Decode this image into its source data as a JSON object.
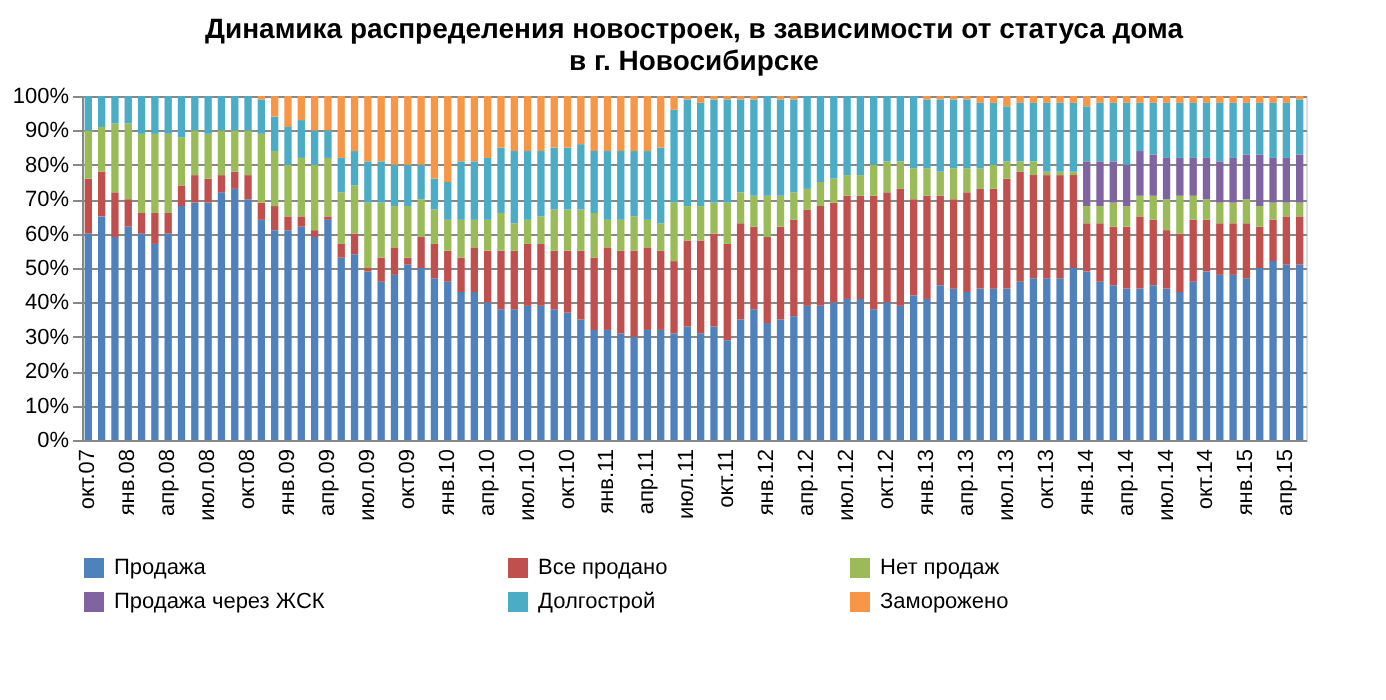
{
  "chart_data": {
    "type": "bar",
    "stacked": true,
    "title": "Динамика распределения новостроек, в зависимости от статуса дома\nв г. Новосибирске",
    "categories": [
      "окт.07",
      null,
      null,
      "янв.08",
      null,
      null,
      "апр.08",
      null,
      null,
      "июл.08",
      null,
      null,
      "окт.08",
      null,
      null,
      "янв.09",
      null,
      null,
      "апр.09",
      null,
      null,
      "июл.09",
      null,
      null,
      "окт.09",
      null,
      null,
      "янв.10",
      null,
      null,
      "апр.10",
      null,
      null,
      "июл.10",
      null,
      null,
      "окт.10",
      null,
      null,
      "янв.11",
      null,
      null,
      "апр.11",
      null,
      null,
      "июл.11",
      null,
      null,
      "окт.11",
      null,
      null,
      "янв.12",
      null,
      null,
      "апр.12",
      null,
      null,
      "июл.12",
      null,
      null,
      "окт.12",
      null,
      null,
      "янв.13",
      null,
      null,
      "апр.13",
      null,
      null,
      "июл.13",
      null,
      null,
      "окт.13",
      null,
      null,
      "янв.14",
      null,
      null,
      "апр.14",
      null,
      null,
      "июл.14",
      null,
      null,
      "окт.14",
      null,
      null,
      "янв.15",
      null,
      null,
      "апр.15",
      null
    ],
    "series": [
      {
        "name": "Продажа",
        "color": "#4f81bd",
        "values": [
          60,
          65,
          59,
          62,
          60,
          57,
          60,
          68,
          69,
          69,
          72,
          73,
          70,
          64,
          61,
          61,
          62,
          59,
          64,
          53,
          54,
          49,
          46,
          48,
          51,
          50,
          47,
          46,
          43,
          43,
          40,
          38,
          38,
          39,
          39,
          38,
          37,
          35,
          32,
          32,
          31,
          30,
          32,
          32,
          31,
          33,
          31,
          33,
          29,
          35,
          38,
          34,
          35,
          36,
          39,
          39,
          40,
          41,
          41,
          38,
          40,
          39,
          42,
          41,
          45,
          44,
          43,
          44,
          44,
          44,
          46,
          47,
          47,
          47,
          50,
          49,
          46,
          45,
          44,
          44,
          45,
          44,
          43,
          46,
          49,
          48,
          48,
          47,
          50,
          52,
          51,
          51
        ]
      },
      {
        "name": "Все продано",
        "color": "#c0504d",
        "values": [
          16,
          13,
          13,
          8,
          6,
          9,
          6,
          6,
          8,
          7,
          5,
          5,
          7,
          5,
          7,
          4,
          3,
          2,
          1,
          4,
          6,
          1,
          7,
          8,
          2,
          9,
          10,
          9,
          10,
          13,
          15,
          17,
          17,
          18,
          18,
          17,
          18,
          20,
          21,
          24,
          24,
          25,
          24,
          23,
          21,
          25,
          27,
          27,
          28,
          28,
          24,
          25,
          27,
          28,
          28,
          29,
          29,
          30,
          30,
          33,
          32,
          34,
          28,
          30,
          26,
          26,
          29,
          29,
          29,
          32,
          32,
          30,
          30,
          30,
          27,
          14,
          17,
          17,
          18,
          21,
          19,
          17,
          17,
          18,
          15,
          15,
          15,
          16,
          12,
          12,
          14,
          14
        ]
      },
      {
        "name": "Нет продаж",
        "color": "#9bbb59",
        "values": [
          14,
          13,
          20,
          22,
          23,
          23,
          23,
          14,
          13,
          13,
          13,
          12,
          13,
          20,
          16,
          15,
          17,
          19,
          17,
          15,
          14,
          19,
          16,
          12,
          15,
          11,
          10,
          9,
          11,
          8,
          9,
          11,
          8,
          7,
          8,
          12,
          12,
          12,
          13,
          8,
          9,
          10,
          8,
          8,
          17,
          10,
          10,
          9,
          12,
          9,
          9,
          12,
          9,
          8,
          6,
          7,
          7,
          6,
          6,
          9,
          9,
          8,
          9,
          8,
          7,
          9,
          7,
          6,
          7,
          5,
          3,
          4,
          1,
          1,
          1,
          5,
          5,
          7,
          6,
          6,
          7,
          9,
          11,
          7,
          6,
          6,
          6,
          7,
          6,
          5,
          4,
          4
        ]
      },
      {
        "name": "Продажа через ЖСК",
        "color": "#8064a2",
        "values": [
          null,
          null,
          null,
          null,
          null,
          null,
          null,
          null,
          null,
          null,
          null,
          null,
          null,
          null,
          null,
          null,
          null,
          null,
          null,
          null,
          null,
          null,
          null,
          null,
          null,
          null,
          null,
          null,
          null,
          null,
          null,
          null,
          null,
          null,
          null,
          null,
          null,
          null,
          null,
          null,
          null,
          null,
          null,
          null,
          null,
          null,
          null,
          null,
          null,
          null,
          null,
          null,
          null,
          null,
          null,
          null,
          null,
          null,
          null,
          null,
          null,
          null,
          null,
          null,
          null,
          null,
          null,
          null,
          null,
          null,
          null,
          null,
          null,
          null,
          null,
          13,
          13,
          12,
          12,
          13,
          12,
          12,
          11,
          11,
          12,
          12,
          13,
          13,
          15,
          13,
          13,
          14
        ]
      },
      {
        "name": "Долгострой",
        "color": "#4bacc6",
        "values": [
          10,
          9,
          8,
          8,
          11,
          11,
          11,
          12,
          10,
          11,
          10,
          10,
          10,
          10,
          10,
          11,
          11,
          10,
          8,
          10,
          10,
          12,
          12,
          12,
          12,
          10,
          9,
          11,
          17,
          17,
          18,
          19,
          21,
          20,
          19,
          18,
          18,
          19,
          18,
          20,
          20,
          19,
          20,
          22,
          27,
          31,
          30,
          30,
          30,
          27,
          28,
          29,
          28,
          27,
          27,
          25,
          24,
          23,
          23,
          20,
          19,
          19,
          21,
          20,
          21,
          20,
          20,
          19,
          18,
          16,
          17,
          17,
          20,
          20,
          20,
          16,
          17,
          17,
          18,
          14,
          15,
          16,
          16,
          16,
          16,
          17,
          16,
          15,
          15,
          16,
          16,
          16
        ]
      },
      {
        "name": "Заморожено",
        "color": "#f79646",
        "values": [
          null,
          null,
          null,
          null,
          null,
          null,
          null,
          null,
          null,
          null,
          null,
          null,
          null,
          1,
          6,
          9,
          7,
          10,
          10,
          18,
          16,
          19,
          19,
          20,
          20,
          20,
          24,
          25,
          19,
          19,
          18,
          15,
          16,
          16,
          16,
          15,
          15,
          14,
          16,
          16,
          16,
          16,
          16,
          15,
          4,
          1,
          2,
          1,
          1,
          1,
          1,
          null,
          1,
          1,
          null,
          null,
          null,
          null,
          null,
          null,
          null,
          null,
          null,
          1,
          1,
          1,
          1,
          2,
          2,
          3,
          2,
          2,
          2,
          2,
          2,
          3,
          2,
          2,
          2,
          2,
          2,
          2,
          2,
          2,
          2,
          2,
          2,
          2,
          2,
          2,
          2,
          1
        ]
      }
    ],
    "ylim": [
      0,
      100
    ],
    "yticks": [
      {
        "value": 0,
        "label": "0%"
      },
      {
        "value": 10,
        "label": "10%"
      },
      {
        "value": 20,
        "label": "20%"
      },
      {
        "value": 30,
        "label": "30%"
      },
      {
        "value": 40,
        "label": "40%"
      },
      {
        "value": 50,
        "label": "50%"
      },
      {
        "value": 60,
        "label": "60%"
      },
      {
        "value": 70,
        "label": "70%"
      },
      {
        "value": 80,
        "label": "80%"
      },
      {
        "value": 90,
        "label": "90%"
      },
      {
        "value": 100,
        "label": "100%"
      }
    ],
    "grid": "y",
    "legend": "bottom"
  }
}
